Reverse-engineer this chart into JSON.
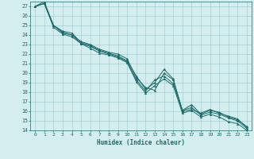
{
  "xlabel": "Humidex (Indice chaleur)",
  "bg_color": "#d4eef0",
  "grid_color": "#a8cdd0",
  "line_color": "#1a6b6b",
  "xlim": [
    -0.5,
    23.5
  ],
  "ylim": [
    14,
    27.5
  ],
  "xticks": [
    0,
    1,
    2,
    3,
    4,
    5,
    6,
    7,
    8,
    9,
    10,
    11,
    12,
    13,
    14,
    15,
    16,
    17,
    18,
    19,
    20,
    21,
    22,
    23
  ],
  "yticks": [
    14,
    15,
    16,
    17,
    18,
    19,
    20,
    21,
    22,
    23,
    24,
    25,
    26,
    27
  ],
  "series": [
    {
      "x": [
        0,
        1,
        2,
        3,
        4,
        5,
        6,
        7,
        8,
        9,
        10,
        11,
        12,
        13,
        14,
        15,
        16,
        17,
        18,
        19,
        20,
        21,
        22,
        23
      ],
      "y": [
        27.0,
        27.5,
        25.0,
        24.2,
        24.0,
        23.3,
        23.0,
        22.5,
        22.2,
        22.0,
        21.5,
        19.5,
        18.5,
        18.2,
        20.0,
        19.3,
        16.0,
        16.2,
        15.8,
        16.2,
        15.8,
        15.5,
        15.2,
        14.3
      ]
    },
    {
      "x": [
        0,
        1,
        2,
        3,
        4,
        5,
        6,
        7,
        8,
        9,
        10,
        11,
        12,
        13,
        14,
        15,
        16,
        17,
        18,
        19,
        20,
        21,
        22,
        23
      ],
      "y": [
        27.0,
        27.3,
        24.8,
        24.1,
        23.8,
        23.1,
        22.8,
        22.3,
        22.0,
        21.7,
        21.2,
        19.3,
        18.1,
        19.3,
        19.7,
        18.9,
        16.1,
        16.4,
        15.6,
        15.9,
        15.7,
        15.3,
        15.0,
        14.2
      ]
    },
    {
      "x": [
        0,
        1,
        2,
        3,
        4,
        5,
        6,
        7,
        8,
        9,
        10,
        11,
        12,
        13,
        14,
        15,
        16,
        17,
        18,
        19,
        20,
        21,
        22,
        23
      ],
      "y": [
        27.0,
        27.3,
        25.0,
        24.4,
        24.2,
        23.2,
        22.9,
        22.4,
        22.1,
        21.8,
        21.3,
        19.7,
        18.3,
        19.0,
        20.4,
        19.4,
        16.1,
        16.7,
        15.7,
        16.1,
        15.9,
        15.4,
        15.1,
        14.4
      ]
    },
    {
      "x": [
        0,
        1,
        2,
        3,
        4,
        5,
        6,
        7,
        8,
        9,
        10,
        11,
        12,
        13,
        14,
        15,
        16,
        17,
        18,
        19,
        20,
        21,
        22,
        23
      ],
      "y": [
        27.0,
        27.3,
        25.0,
        24.3,
        24.0,
        23.1,
        22.6,
        22.1,
        21.9,
        21.6,
        21.1,
        19.1,
        17.9,
        18.7,
        19.4,
        18.7,
        15.8,
        16.1,
        15.4,
        15.7,
        15.4,
        14.9,
        14.7,
        14.0
      ]
    }
  ]
}
